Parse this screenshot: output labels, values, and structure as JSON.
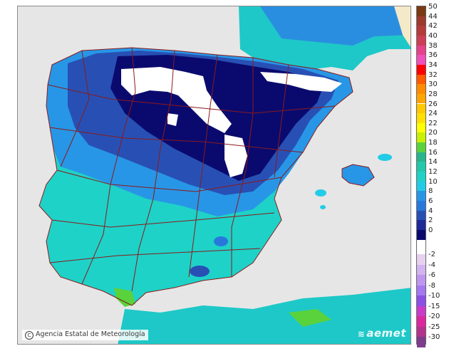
{
  "credit": "Agencia Estatal de Meteorología",
  "brand": "aemet",
  "legend": {
    "positive": [
      {
        "label": "50",
        "color": "#7b3a13"
      },
      {
        "label": "44",
        "color": "#9c3b2d"
      },
      {
        "label": "42",
        "color": "#b63b3b"
      },
      {
        "label": "40",
        "color": "#cc3f55"
      },
      {
        "label": "38",
        "color": "#e6428a"
      },
      {
        "label": "36",
        "color": "#f050b8"
      },
      {
        "label": "34",
        "color": "#ff0000"
      },
      {
        "label": "32",
        "color": "#ff5a00"
      },
      {
        "label": "30",
        "color": "#ff8c00"
      },
      {
        "label": "28",
        "color": "#ffa500"
      },
      {
        "label": "26",
        "color": "#ffc800"
      },
      {
        "label": "24",
        "color": "#ffe000"
      },
      {
        "label": "22",
        "color": "#ffff00"
      },
      {
        "label": "20",
        "color": "#c8f000"
      },
      {
        "label": "18",
        "color": "#5ad23c"
      },
      {
        "label": "16",
        "color": "#28b48c"
      },
      {
        "label": "14",
        "color": "#22c8aa"
      },
      {
        "label": "12",
        "color": "#1ed2c8"
      },
      {
        "label": "10",
        "color": "#22cce6"
      },
      {
        "label": "8",
        "color": "#2896e6"
      },
      {
        "label": "6",
        "color": "#2878dc"
      },
      {
        "label": "4",
        "color": "#2850b4"
      },
      {
        "label": "2",
        "color": "#1e2896"
      },
      {
        "label": "0",
        "color": "#0a0a6e"
      }
    ],
    "negative": [
      {
        "label": "-2",
        "color": "#e6d2f0"
      },
      {
        "label": "-4",
        "color": "#d2b4f0"
      },
      {
        "label": "-6",
        "color": "#be96f0"
      },
      {
        "label": "-8",
        "color": "#a578f0"
      },
      {
        "label": "-10",
        "color": "#8c50e6"
      },
      {
        "label": "-15",
        "color": "#c83cc8"
      },
      {
        "label": "-20",
        "color": "#dc28a0"
      },
      {
        "label": "-25",
        "color": "#b4328c"
      },
      {
        "label": "-30",
        "color": "#7d3c8c"
      }
    ]
  }
}
